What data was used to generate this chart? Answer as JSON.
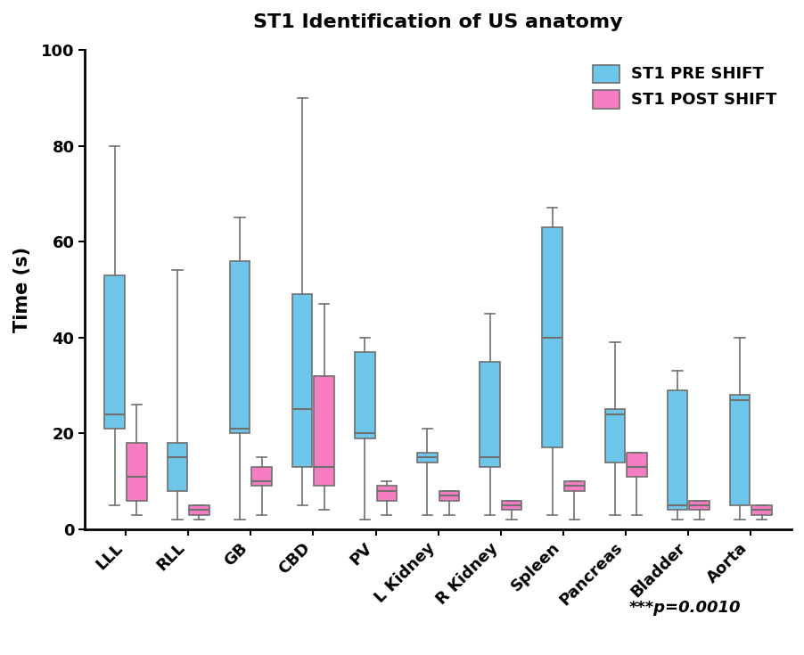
{
  "title": "ST1 Identification of US anatomy",
  "ylabel": "Time (s)",
  "categories": [
    "LLL",
    "RLL",
    "GB",
    "CBD",
    "PV",
    "L Kidney",
    "R Kidney",
    "Spleen",
    "Pancreas",
    "Bladder",
    "Aorta"
  ],
  "ylim": [
    0,
    100
  ],
  "yticks": [
    0,
    20,
    40,
    60,
    80,
    100
  ],
  "annotation": "***p=0.0010",
  "pre_color": "#6EC6EA",
  "post_color": "#F77DC2",
  "legend_labels": [
    "ST1 PRE SHIFT",
    "ST1 POST SHIFT"
  ],
  "pre_boxes": [
    {
      "whislo": 5,
      "q1": 21,
      "med": 24,
      "q3": 53,
      "whishi": 80
    },
    {
      "whislo": 2,
      "q1": 8,
      "med": 15,
      "q3": 18,
      "whishi": 54
    },
    {
      "whislo": 2,
      "q1": 20,
      "med": 21,
      "q3": 56,
      "whishi": 65
    },
    {
      "whislo": 5,
      "q1": 13,
      "med": 25,
      "q3": 49,
      "whishi": 90
    },
    {
      "whislo": 2,
      "q1": 19,
      "med": 20,
      "q3": 37,
      "whishi": 40
    },
    {
      "whislo": 3,
      "q1": 14,
      "med": 15,
      "q3": 16,
      "whishi": 21
    },
    {
      "whislo": 3,
      "q1": 13,
      "med": 15,
      "q3": 35,
      "whishi": 45
    },
    {
      "whislo": 3,
      "q1": 17,
      "med": 40,
      "q3": 63,
      "whishi": 67
    },
    {
      "whislo": 3,
      "q1": 14,
      "med": 24,
      "q3": 25,
      "whishi": 39
    },
    {
      "whislo": 2,
      "q1": 4,
      "med": 5,
      "q3": 29,
      "whishi": 33
    },
    {
      "whislo": 2,
      "q1": 5,
      "med": 27,
      "q3": 28,
      "whishi": 40
    }
  ],
  "post_boxes": [
    {
      "whislo": 3,
      "q1": 6,
      "med": 11,
      "q3": 18,
      "whishi": 26
    },
    {
      "whislo": 2,
      "q1": 3,
      "med": 4,
      "q3": 5,
      "whishi": 5
    },
    {
      "whislo": 3,
      "q1": 9,
      "med": 10,
      "q3": 13,
      "whishi": 15
    },
    {
      "whislo": 4,
      "q1": 9,
      "med": 13,
      "q3": 32,
      "whishi": 47
    },
    {
      "whislo": 3,
      "q1": 6,
      "med": 8,
      "q3": 9,
      "whishi": 10
    },
    {
      "whislo": 3,
      "q1": 6,
      "med": 7,
      "q3": 8,
      "whishi": 8
    },
    {
      "whislo": 2,
      "q1": 4,
      "med": 5,
      "q3": 6,
      "whishi": 6
    },
    {
      "whislo": 2,
      "q1": 8,
      "med": 9,
      "q3": 10,
      "whishi": 10
    },
    {
      "whislo": 3,
      "q1": 11,
      "med": 13,
      "q3": 16,
      "whishi": 16
    },
    {
      "whislo": 2,
      "q1": 4,
      "med": 5,
      "q3": 6,
      "whishi": 6
    },
    {
      "whislo": 2,
      "q1": 3,
      "med": 4,
      "q3": 5,
      "whishi": 5
    }
  ]
}
